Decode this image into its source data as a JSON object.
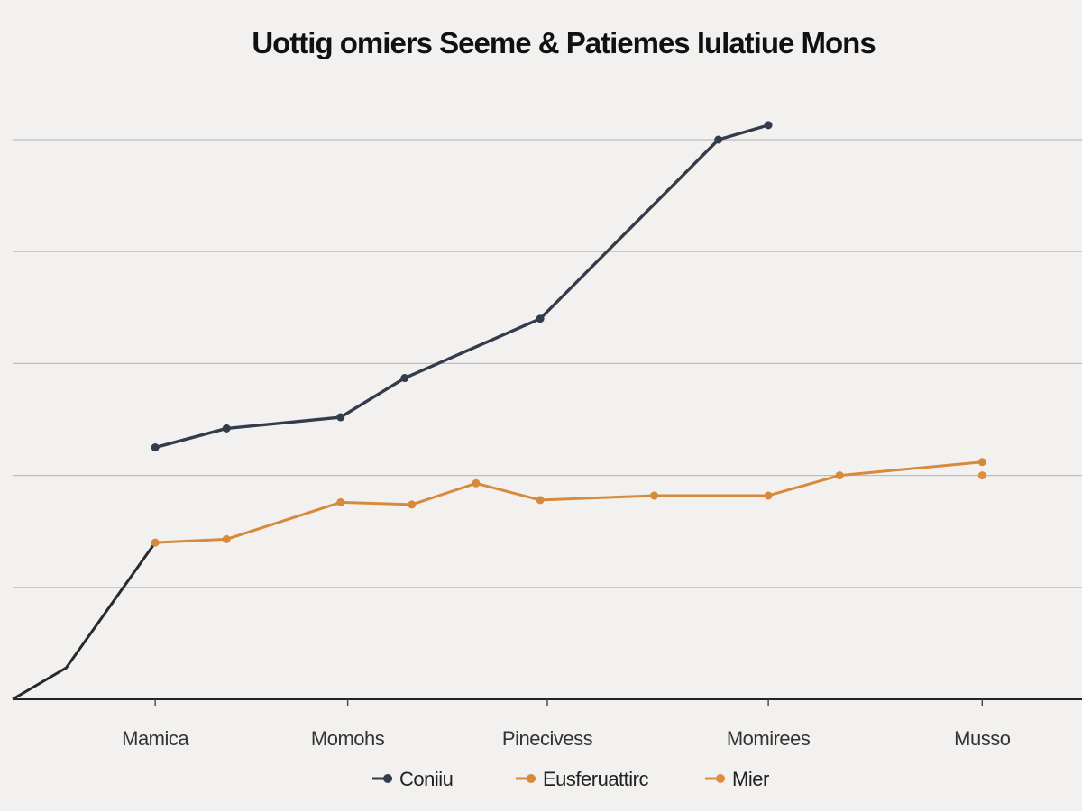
{
  "chart_data": {
    "type": "line",
    "title": "Uottig omiers Seeme & Patiemes lulatiue Mons",
    "xlabel": "",
    "ylabel": "",
    "x": [
      0,
      1,
      2,
      3,
      4,
      5,
      6,
      7,
      8,
      9,
      10,
      11,
      12,
      13,
      14,
      15
    ],
    "xlim": [
      0,
      15
    ],
    "ylim": [
      0,
      5
    ],
    "x_ticks": [
      {
        "x": 2,
        "label": "Mamica"
      },
      {
        "x": 4.7,
        "label": "Momohs"
      },
      {
        "x": 7.5,
        "label": "Pinecivess"
      },
      {
        "x": 10.6,
        "label": "Momirees"
      },
      {
        "x": 13.6,
        "label": "Musso"
      }
    ],
    "grid": true,
    "legend_position": "bottom",
    "series": [
      {
        "name": "Coniiu",
        "color": "#333c4a",
        "points": [
          [
            2.0,
            2.25
          ],
          [
            3.0,
            2.42
          ],
          [
            4.6,
            2.52
          ],
          [
            5.5,
            2.87
          ],
          [
            7.4,
            3.4
          ],
          [
            9.9,
            5.0
          ],
          [
            10.6,
            5.13
          ]
        ]
      },
      {
        "name": "Eusferuattirc",
        "color": "#d88a3c",
        "points": [
          [
            2.0,
            1.4
          ],
          [
            3.0,
            1.43
          ],
          [
            4.6,
            1.76
          ],
          [
            5.6,
            1.74
          ],
          [
            6.5,
            1.93
          ],
          [
            7.4,
            1.78
          ],
          [
            9.0,
            1.82
          ],
          [
            10.6,
            1.82
          ],
          [
            11.6,
            2.0
          ],
          [
            13.6,
            2.12
          ]
        ]
      },
      {
        "name": "Mier",
        "color": "#e08e3e",
        "points": [
          [
            13.6,
            2.0
          ]
        ]
      }
    ],
    "connector": {
      "color": "#2a2a2a",
      "points": [
        [
          0.0,
          0.0
        ],
        [
          0.75,
          0.28
        ],
        [
          2.0,
          1.4
        ]
      ]
    }
  }
}
